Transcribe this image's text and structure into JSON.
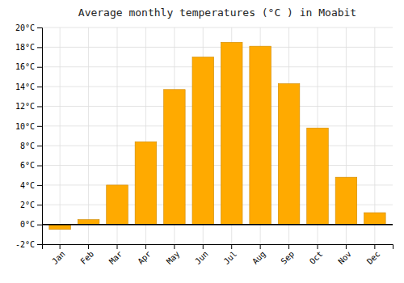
{
  "chart_data": {
    "type": "bar",
    "title": "Average monthly temperatures (°C ) in Moabit",
    "categories": [
      "Jan",
      "Feb",
      "Mar",
      "Apr",
      "May",
      "Jun",
      "Jul",
      "Aug",
      "Sep",
      "Oct",
      "Nov",
      "Dec"
    ],
    "values": [
      -0.5,
      0.5,
      4.0,
      8.4,
      13.7,
      17.0,
      18.5,
      18.1,
      14.3,
      9.8,
      4.8,
      1.2
    ],
    "color": "#FFAA00",
    "ylim": [
      -2,
      20
    ],
    "yticks": [
      {
        "value": -2,
        "label": "-2°C"
      },
      {
        "value": 0,
        "label": "0°C"
      },
      {
        "value": 2,
        "label": "2°C"
      },
      {
        "value": 4,
        "label": "4°C"
      },
      {
        "value": 6,
        "label": "6°C"
      },
      {
        "value": 8,
        "label": "8°C"
      },
      {
        "value": 10,
        "label": "10°C"
      },
      {
        "value": 12,
        "label": "12°C"
      },
      {
        "value": 14,
        "label": "14°C"
      },
      {
        "value": 16,
        "label": "16°C"
      },
      {
        "value": 18,
        "label": "18°C"
      },
      {
        "value": 20,
        "label": "20°C"
      }
    ],
    "grid": true
  }
}
